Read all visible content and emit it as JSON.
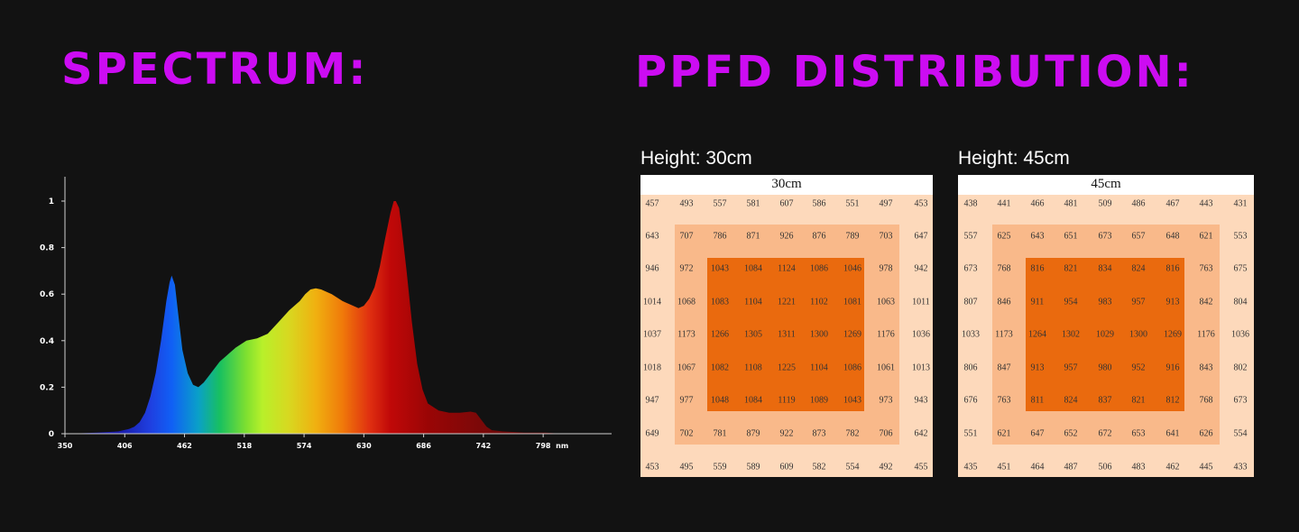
{
  "headings": {
    "spectrum": "SPECTRUM:",
    "ppfd": "PPFD DISTRIBUTION:"
  },
  "colors": {
    "heading": "#cc0cf2",
    "background": "#121212",
    "grid_outer": "#fdd9bb",
    "grid_mid": "#f9b98a",
    "grid_core": "#ea6a0e"
  },
  "chart_data": [
    {
      "type": "area",
      "xlabel": "",
      "xunit": "nm",
      "xlim": [
        350,
        830
      ],
      "ylim": [
        0,
        1
      ],
      "xticks": [
        350,
        406,
        462,
        518,
        574,
        630,
        686,
        742,
        798
      ],
      "yticks": [
        0,
        0.2,
        0.4,
        0.6,
        0.8,
        1
      ],
      "yticklabels": [
        "0",
        "0.2",
        "0.4",
        "0.6",
        "0.8",
        "1"
      ],
      "grid": false,
      "fill": "visible-spectrum-gradient",
      "x": [
        355,
        380,
        400,
        410,
        415,
        420,
        425,
        430,
        435,
        440,
        445,
        448,
        450,
        453,
        456,
        460,
        465,
        470,
        475,
        480,
        485,
        490,
        495,
        500,
        510,
        520,
        530,
        540,
        550,
        560,
        570,
        575,
        580,
        585,
        590,
        595,
        600,
        610,
        620,
        625,
        630,
        635,
        640,
        645,
        650,
        655,
        658,
        660,
        663,
        665,
        670,
        675,
        680,
        685,
        690,
        700,
        710,
        720,
        730,
        735,
        740,
        745,
        750,
        760,
        780,
        800,
        815
      ],
      "y": [
        0.0,
        0.005,
        0.01,
        0.02,
        0.03,
        0.05,
        0.09,
        0.16,
        0.26,
        0.4,
        0.57,
        0.65,
        0.68,
        0.64,
        0.52,
        0.36,
        0.26,
        0.21,
        0.2,
        0.22,
        0.25,
        0.28,
        0.31,
        0.33,
        0.37,
        0.4,
        0.41,
        0.43,
        0.48,
        0.53,
        0.57,
        0.6,
        0.62,
        0.625,
        0.62,
        0.61,
        0.6,
        0.57,
        0.55,
        0.54,
        0.55,
        0.58,
        0.63,
        0.72,
        0.84,
        0.95,
        1.0,
        1.0,
        0.97,
        0.9,
        0.7,
        0.48,
        0.3,
        0.19,
        0.13,
        0.1,
        0.09,
        0.09,
        0.095,
        0.09,
        0.06,
        0.03,
        0.015,
        0.01,
        0.005,
        0.005,
        0.0
      ]
    },
    {
      "type": "heatmap",
      "label": "Height: 30cm",
      "title": "30cm",
      "rows": [
        [
          "457",
          "493",
          "557",
          "581",
          "607",
          "586",
          "551",
          "497",
          "453"
        ],
        [
          "643",
          "707",
          "786",
          "871",
          "926",
          "876",
          "789",
          "703",
          "647"
        ],
        [
          "946",
          "972",
          "1043",
          "1084",
          "1124",
          "1086",
          "1046",
          "978",
          "942"
        ],
        [
          "1014",
          "1068",
          "1083",
          "1104",
          "1221",
          "1102",
          "1081",
          "1063",
          "1011"
        ],
        [
          "1037",
          "1173",
          "1266",
          "1305",
          "1311",
          "1300",
          "1269",
          "1176",
          "1036"
        ],
        [
          "1018",
          "1067",
          "1082",
          "1108",
          "1225",
          "1104",
          "1086",
          "1061",
          "1013"
        ],
        [
          "947",
          "977",
          "1048",
          "1084",
          "1119",
          "1089",
          "1043",
          "973",
          "943"
        ],
        [
          "649",
          "702",
          "781",
          "879",
          "922",
          "873",
          "782",
          "706",
          "642"
        ],
        [
          "453",
          "495",
          "559",
          "589",
          "609",
          "582",
          "554",
          "492",
          "455"
        ]
      ]
    },
    {
      "type": "heatmap",
      "label": "Height: 45cm",
      "title": "45cm",
      "rows": [
        [
          "438",
          "441",
          "466",
          "481",
          "509",
          "486",
          "467",
          "443",
          "431"
        ],
        [
          "557",
          "625",
          "643",
          "651",
          "673",
          "657",
          "648",
          "621",
          "553"
        ],
        [
          "673",
          "768",
          "816",
          "821",
          "834",
          "824",
          "816",
          "763",
          "675"
        ],
        [
          "807",
          "846",
          "911",
          "954",
          "983",
          "957",
          "913",
          "842",
          "804"
        ],
        [
          "1033",
          "1173",
          "1264",
          "1302",
          "1029",
          "1300",
          "1269",
          "1176",
          "1036"
        ],
        [
          "806",
          "847",
          "913",
          "957",
          "980",
          "952",
          "916",
          "843",
          "802"
        ],
        [
          "676",
          "763",
          "811",
          "824",
          "837",
          "821",
          "812",
          "768",
          "673"
        ],
        [
          "551",
          "621",
          "647",
          "652",
          "672",
          "653",
          "641",
          "626",
          "554"
        ],
        [
          "435",
          "451",
          "464",
          "487",
          "506",
          "483",
          "462",
          "445",
          "433"
        ]
      ]
    }
  ]
}
